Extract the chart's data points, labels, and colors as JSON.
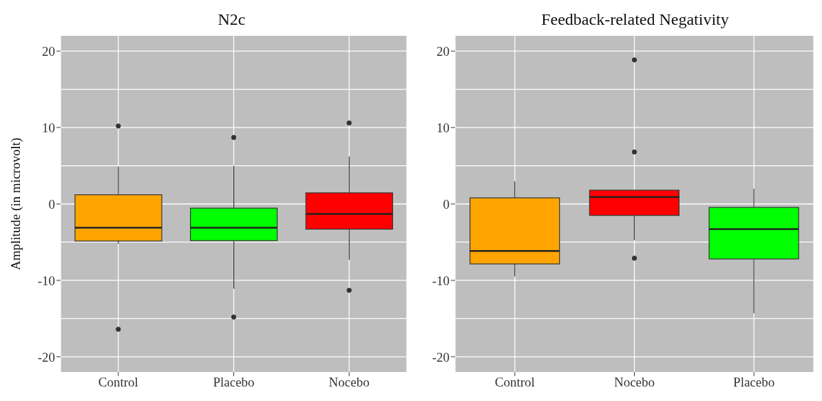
{
  "chart_data": [
    {
      "type": "box",
      "title": "N2c",
      "ylabel": "Amplitude (in microvolt)",
      "categories": [
        "Control",
        "Placebo",
        "Nocebo"
      ],
      "colors": [
        "#ffa500",
        "#00ff00",
        "#ff0000"
      ],
      "boxes": [
        {
          "low": -5.2,
          "q1": -4.85,
          "median": -3.1,
          "q3": 1.2,
          "high": 4.9,
          "outliers": [
            10.2,
            -16.4
          ]
        },
        {
          "low": -11.1,
          "q1": -4.8,
          "median": -3.1,
          "q3": -0.55,
          "high": 5.0,
          "outliers": [
            8.7,
            -14.8
          ]
        },
        {
          "low": -7.3,
          "q1": -3.3,
          "median": -1.3,
          "q3": 1.45,
          "high": 6.2,
          "outliers": [
            10.6,
            -11.3
          ]
        }
      ],
      "ylim": [
        -22,
        22
      ],
      "yticks": [
        -20,
        -10,
        0,
        10,
        20
      ],
      "grid": true
    },
    {
      "type": "box",
      "title": "Feedback-related Negativity",
      "categories": [
        "Control",
        "Nocebo",
        "Placebo"
      ],
      "colors": [
        "#ffa500",
        "#ff0000",
        "#00ff00"
      ],
      "boxes": [
        {
          "low": -9.5,
          "q1": -7.85,
          "median": -6.15,
          "q3": 0.8,
          "high": 2.97
        },
        {
          "low": -4.7,
          "q1": -1.5,
          "median": 0.9,
          "q3": 1.8,
          "high": 1.8,
          "outliers": [
            18.85,
            6.8,
            -7.1
          ]
        },
        {
          "low": -14.3,
          "q1": -7.2,
          "median": -3.3,
          "q3": -0.45,
          "high": 2.0
        }
      ],
      "ylim": [
        -22,
        22
      ],
      "yticks": [
        -20,
        -10,
        0,
        10,
        20
      ],
      "grid": true
    }
  ]
}
